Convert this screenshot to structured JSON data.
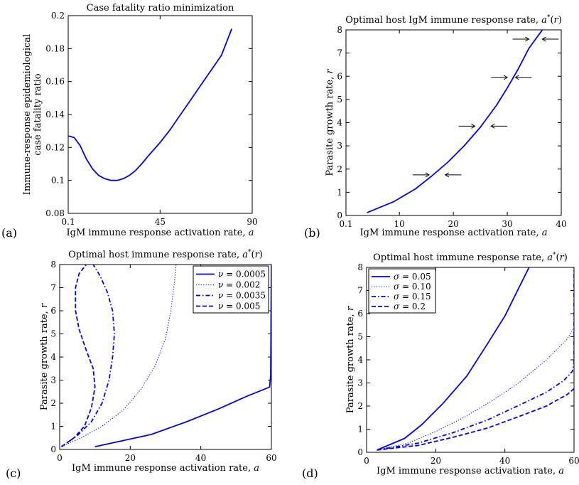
{
  "chart_data": [
    {
      "id": "a",
      "panel_label": "(a)",
      "type": "line",
      "title": "Case fatality ratio minimization",
      "xlabel": "IgM immune response activation rate, a",
      "ylabel_lines": [
        "Immune-response epidemiological",
        "case fatality ratio"
      ],
      "xlim": [
        0.1,
        90
      ],
      "ylim": [
        0.08,
        0.2
      ],
      "xticks": [
        0.1,
        45,
        90
      ],
      "xtick_labels": [
        "0.1",
        "45",
        "90"
      ],
      "yticks": [
        0.08,
        0.1,
        0.12,
        0.14,
        0.16,
        0.18,
        0.2
      ],
      "ytick_labels": [
        "0.08",
        "0.1",
        "0.12",
        "0.14",
        "0.16",
        "0.18",
        "0.2"
      ],
      "grid": false,
      "series": [
        {
          "color": "#0000ff",
          "dash": "solid",
          "x": [
            0.1,
            3,
            6,
            9,
            12,
            15,
            18,
            21,
            24,
            27,
            30,
            33,
            36,
            40,
            45,
            50,
            55,
            60,
            65,
            70,
            75,
            80
          ],
          "y": [
            0.127,
            0.126,
            0.121,
            0.113,
            0.107,
            0.103,
            0.101,
            0.1,
            0.1,
            0.101,
            0.103,
            0.106,
            0.11,
            0.116,
            0.123,
            0.131,
            0.14,
            0.149,
            0.158,
            0.167,
            0.176,
            0.192
          ]
        }
      ]
    },
    {
      "id": "b",
      "panel_label": "(b)",
      "type": "line",
      "title": "Optimal host IgM immune response rate, a*(r)",
      "xlabel": "IgM immune response activation rate, a",
      "ylabel": "Parasite growth rate, r",
      "xlim": [
        0.1,
        40
      ],
      "ylim": [
        0,
        8
      ],
      "xticks": [
        0.1,
        10,
        20,
        30,
        40
      ],
      "xtick_labels": [
        "0.1",
        "10",
        "20",
        "30",
        "40"
      ],
      "yticks": [
        0,
        1,
        2,
        3,
        4,
        5,
        6,
        7,
        8
      ],
      "ytick_labels": [
        "0",
        "1",
        "2",
        "3",
        "4",
        "5",
        "6",
        "7",
        "8"
      ],
      "grid": false,
      "series": [
        {
          "color": "#0000ff",
          "dash": "solid",
          "x": [
            4,
            9,
            13,
            16,
            19,
            22,
            25,
            28,
            30,
            32,
            34,
            36.5
          ],
          "y": [
            0.12,
            0.6,
            1.15,
            1.7,
            2.3,
            3.0,
            3.8,
            4.75,
            5.5,
            6.3,
            7.2,
            8.0
          ]
        }
      ],
      "arrows": [
        {
          "y": 1.75,
          "x_start": 12.5,
          "x_end": 15.5
        },
        {
          "y": 1.75,
          "x_start": 21.5,
          "x_end": 18.5
        },
        {
          "y": 3.85,
          "x_start": 21.0,
          "x_end": 24.0
        },
        {
          "y": 3.85,
          "x_start": 30.0,
          "x_end": 27.0
        },
        {
          "y": 5.95,
          "x_start": 27.0,
          "x_end": 30.0
        },
        {
          "y": 5.95,
          "x_start": 34.5,
          "x_end": 31.5
        },
        {
          "y": 7.6,
          "x_start": 31.0,
          "x_end": 34.0
        },
        {
          "y": 7.6,
          "x_start": 39.5,
          "x_end": 36.5
        }
      ]
    },
    {
      "id": "c",
      "panel_label": "(c)",
      "type": "line",
      "title": "Optimal host immune response rate, a*(r)",
      "xlabel": "IgM immune response activation rate, a",
      "ylabel": "Parasite growth rate, r",
      "xlim": [
        0,
        60
      ],
      "ylim": [
        0,
        8
      ],
      "xticks": [
        0,
        20,
        40,
        60
      ],
      "xtick_labels": [
        "0",
        "20",
        "40",
        "60"
      ],
      "yticks": [
        0,
        1,
        2,
        3,
        4,
        5,
        6,
        7,
        8
      ],
      "ytick_labels": [
        "0",
        "1",
        "2",
        "3",
        "4",
        "5",
        "6",
        "7",
        "8"
      ],
      "grid": false,
      "legend_position": "top-right",
      "series": [
        {
          "name": "ν = 0.0005",
          "color": "#0000ff",
          "dash": "solid",
          "x": [
            10,
            20,
            26,
            36,
            45,
            53,
            59.5,
            59.8,
            60
          ],
          "y": [
            0.12,
            0.45,
            0.65,
            1.2,
            1.75,
            2.3,
            2.7,
            3.2,
            8.0
          ]
        },
        {
          "name": "ν = 0.002",
          "color": "#0000ff",
          "dash": "dotted",
          "x": [
            0.5,
            6,
            12,
            18,
            23,
            27,
            30,
            31.5,
            32.5,
            33
          ],
          "y": [
            0.12,
            0.5,
            1.0,
            1.7,
            2.6,
            3.6,
            4.8,
            6.0,
            7.2,
            8.0
          ]
        },
        {
          "name": "ν = 0.0035",
          "color": "#0000ff",
          "dash": "dashdot",
          "x": [
            0.5,
            5,
            9,
            12,
            14,
            15,
            15.5,
            15,
            13.5,
            11.5,
            9.5
          ],
          "y": [
            0.12,
            0.6,
            1.2,
            2.0,
            3.0,
            4.0,
            5.0,
            6.0,
            6.8,
            7.5,
            8.0
          ]
        },
        {
          "name": "ν = 0.005",
          "color": "#0000ff",
          "dash": "dashed",
          "x": [
            0.5,
            4,
            7,
            9,
            10,
            9.5,
            7.5,
            5.5,
            4.5,
            4.5,
            5.5,
            7.5
          ],
          "y": [
            0.12,
            0.5,
            1.0,
            1.8,
            2.7,
            3.5,
            4.3,
            5.2,
            6.0,
            7.0,
            7.6,
            8.0
          ]
        }
      ]
    },
    {
      "id": "d",
      "panel_label": "(d)",
      "type": "line",
      "title": "Optimal host immune response rate, a*(r)",
      "xlabel": "IgM immune response activation rate, a",
      "ylabel": "Parasite growth rate, r",
      "xlim": [
        0,
        60
      ],
      "ylim": [
        0,
        8
      ],
      "xticks": [
        0,
        20,
        40,
        60
      ],
      "xtick_labels": [
        "0",
        "20",
        "40",
        "60"
      ],
      "yticks": [
        0,
        1,
        2,
        3,
        4,
        5,
        6,
        7,
        8
      ],
      "ytick_labels": [
        "0",
        "1",
        "2",
        "3",
        "4",
        "5",
        "6",
        "7",
        "8"
      ],
      "grid": false,
      "legend_position": "top-left",
      "series": [
        {
          "name": "σ = 0.05",
          "color": "#0000ff",
          "dash": "solid",
          "x": [
            3,
            11,
            16,
            22,
            29,
            35,
            40,
            44,
            47
          ],
          "y": [
            0.1,
            0.6,
            1.2,
            2.1,
            3.3,
            4.7,
            5.9,
            7.1,
            8.0
          ]
        },
        {
          "name": "σ = 0.10",
          "color": "#0000ff",
          "dash": "dotted",
          "x": [
            3,
            12,
            20,
            28,
            36,
            44,
            52,
            58,
            60
          ],
          "y": [
            0.1,
            0.4,
            0.9,
            1.5,
            2.2,
            3.0,
            4.0,
            4.9,
            5.4
          ]
        },
        {
          "name": "σ = 0.15",
          "color": "#0000ff",
          "dash": "dashdot",
          "x": [
            3,
            15,
            25,
            35,
            45,
            52,
            57,
            59.5,
            60,
            60
          ],
          "y": [
            0.1,
            0.4,
            0.85,
            1.4,
            2.1,
            2.6,
            3.1,
            3.5,
            3.8,
            8.0
          ]
        },
        {
          "name": "σ = 0.2",
          "color": "#0000ff",
          "dash": "dashed",
          "x": [
            3,
            15,
            25,
            35,
            45,
            52,
            58,
            60
          ],
          "y": [
            0.1,
            0.3,
            0.65,
            1.05,
            1.6,
            2.0,
            2.5,
            2.75
          ]
        }
      ]
    }
  ]
}
